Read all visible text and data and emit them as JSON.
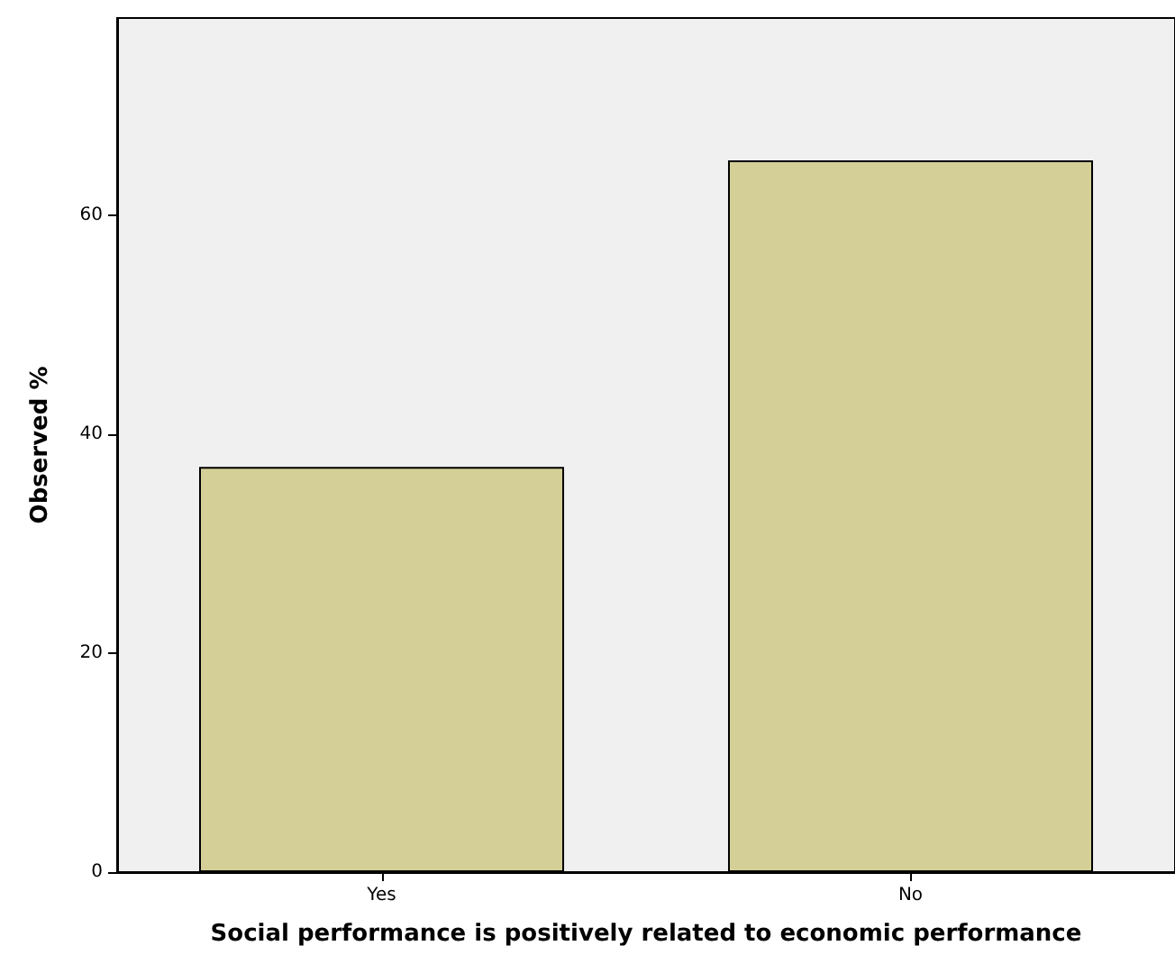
{
  "chart_data": {
    "type": "bar",
    "xlabel": "Social performance is positively related to economic performance",
    "ylabel": "Observed %",
    "categories": [
      "Yes",
      "No"
    ],
    "values": [
      37,
      65
    ],
    "color": "#d4cf96",
    "ylim": [
      0,
      78
    ],
    "yticks": [
      0,
      20,
      40,
      60
    ],
    "grid": false
  }
}
